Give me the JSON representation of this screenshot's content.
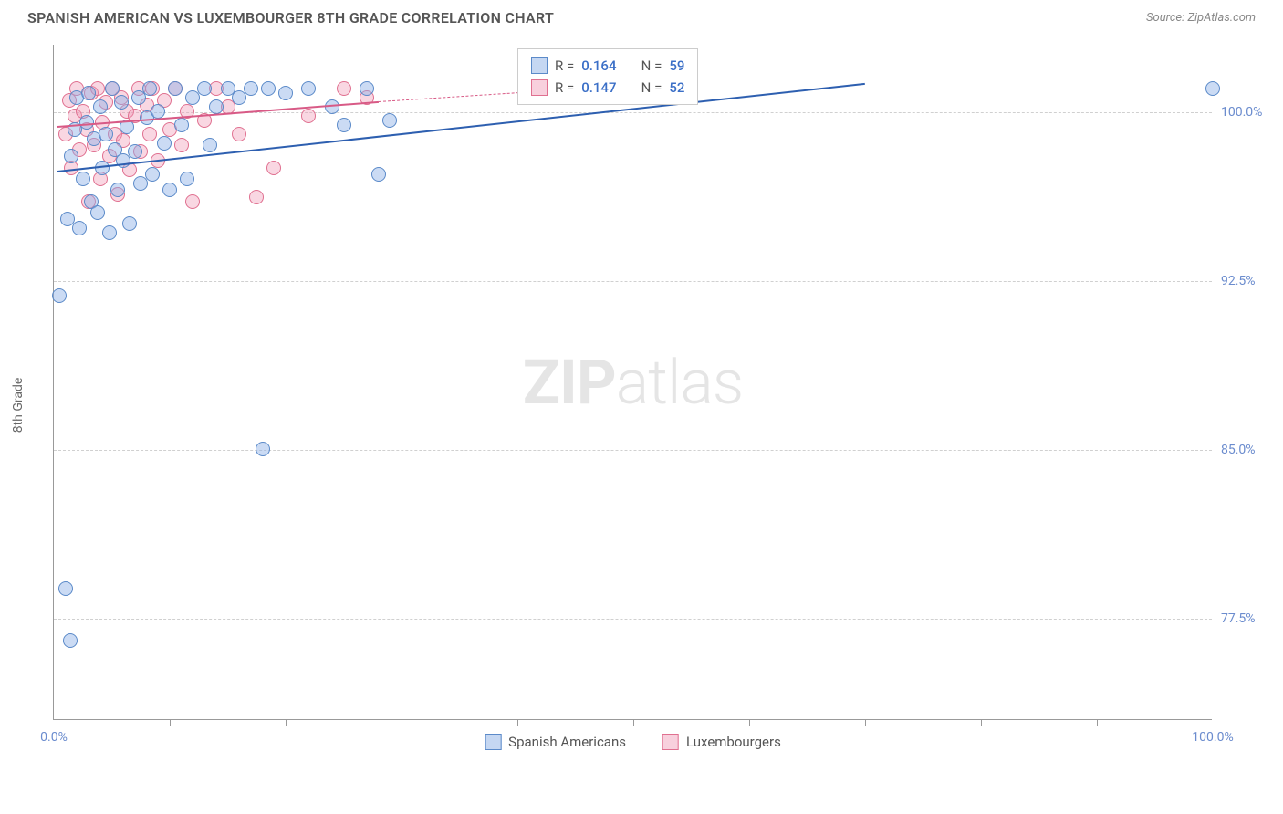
{
  "title": "SPANISH AMERICAN VS LUXEMBOURGER 8TH GRADE CORRELATION CHART",
  "source_label": "Source:",
  "source_name": "ZipAtlas.com",
  "ylabel": "8th Grade",
  "watermark": {
    "zip": "ZIP",
    "atlas": "atlas"
  },
  "chart": {
    "type": "scatter",
    "xlim": [
      0,
      100
    ],
    "ylim": [
      73,
      103
    ],
    "xticks": [
      0,
      100
    ],
    "xtick_labels": [
      "0.0%",
      "100.0%"
    ],
    "xtick_marks": [
      10,
      20,
      30,
      40,
      50,
      60,
      70,
      80,
      90
    ],
    "yticks": [
      77.5,
      85.0,
      92.5,
      100.0
    ],
    "ytick_labels": [
      "77.5%",
      "85.0%",
      "92.5%",
      "100.0%"
    ],
    "grid_color": "#d0d0d0",
    "background_color": "#ffffff",
    "marker_size": 16,
    "series": {
      "spanish": {
        "label": "Spanish Americans",
        "color_fill": "rgba(140,175,230,0.45)",
        "color_stroke": "#5b8ac9",
        "R": "0.164",
        "N": "59",
        "trendline": {
          "x1": 0.3,
          "y1": 97.4,
          "x2": 70,
          "y2": 101.3,
          "color": "#2d5fb0"
        },
        "points": [
          [
            0.5,
            91.8
          ],
          [
            1.0,
            78.8
          ],
          [
            1.4,
            76.5
          ],
          [
            1.2,
            95.2
          ],
          [
            1.5,
            98.0
          ],
          [
            1.8,
            99.2
          ],
          [
            2.0,
            100.6
          ],
          [
            2.2,
            94.8
          ],
          [
            2.5,
            97.0
          ],
          [
            2.8,
            99.5
          ],
          [
            3.0,
            100.8
          ],
          [
            3.2,
            96.0
          ],
          [
            3.5,
            98.8
          ],
          [
            3.8,
            95.5
          ],
          [
            4.0,
            100.2
          ],
          [
            4.2,
            97.5
          ],
          [
            4.5,
            99.0
          ],
          [
            4.8,
            94.6
          ],
          [
            5.0,
            101.0
          ],
          [
            5.3,
            98.3
          ],
          [
            5.5,
            96.5
          ],
          [
            5.8,
            100.4
          ],
          [
            6.0,
            97.8
          ],
          [
            6.3,
            99.3
          ],
          [
            6.5,
            95.0
          ],
          [
            7.0,
            98.2
          ],
          [
            7.3,
            100.6
          ],
          [
            7.5,
            96.8
          ],
          [
            8.0,
            99.7
          ],
          [
            8.3,
            101.0
          ],
          [
            8.5,
            97.2
          ],
          [
            9.0,
            100.0
          ],
          [
            9.5,
            98.6
          ],
          [
            10.0,
            96.5
          ],
          [
            10.5,
            101.0
          ],
          [
            11.0,
            99.4
          ],
          [
            11.5,
            97.0
          ],
          [
            12.0,
            100.6
          ],
          [
            13.0,
            101.0
          ],
          [
            13.5,
            98.5
          ],
          [
            14.0,
            100.2
          ],
          [
            15.0,
            101.0
          ],
          [
            16.0,
            100.6
          ],
          [
            17.0,
            101.0
          ],
          [
            18.0,
            85.0
          ],
          [
            18.5,
            101.0
          ],
          [
            20.0,
            100.8
          ],
          [
            22.0,
            101.0
          ],
          [
            24.0,
            100.2
          ],
          [
            25.0,
            99.4
          ],
          [
            27.0,
            101.0
          ],
          [
            28.0,
            97.2
          ],
          [
            29.0,
            99.6
          ],
          [
            100.0,
            101.0
          ]
        ]
      },
      "lux": {
        "label": "Luxembourgers",
        "color_fill": "rgba(240,150,180,0.38)",
        "color_stroke": "#e07090",
        "R": "0.147",
        "N": "52",
        "trendline": {
          "x1": 0.3,
          "y1": 99.4,
          "x2": 28,
          "y2": 100.5,
          "color": "#d85a86",
          "dash_ext_x2": 52,
          "dash_ext_y2": 101.3
        },
        "points": [
          [
            1.0,
            99.0
          ],
          [
            1.3,
            100.5
          ],
          [
            1.5,
            97.5
          ],
          [
            1.8,
            99.8
          ],
          [
            2.0,
            101.0
          ],
          [
            2.2,
            98.3
          ],
          [
            2.5,
            100.0
          ],
          [
            2.8,
            99.2
          ],
          [
            3.0,
            96.0
          ],
          [
            3.2,
            100.8
          ],
          [
            3.5,
            98.5
          ],
          [
            3.8,
            101.0
          ],
          [
            4.0,
            97.0
          ],
          [
            4.2,
            99.5
          ],
          [
            4.5,
            100.4
          ],
          [
            4.8,
            98.0
          ],
          [
            5.0,
            101.0
          ],
          [
            5.3,
            99.0
          ],
          [
            5.5,
            96.3
          ],
          [
            5.8,
            100.6
          ],
          [
            6.0,
            98.7
          ],
          [
            6.3,
            100.0
          ],
          [
            6.5,
            97.4
          ],
          [
            7.0,
            99.8
          ],
          [
            7.3,
            101.0
          ],
          [
            7.5,
            98.2
          ],
          [
            8.0,
            100.3
          ],
          [
            8.3,
            99.0
          ],
          [
            8.5,
            101.0
          ],
          [
            9.0,
            97.8
          ],
          [
            9.5,
            100.5
          ],
          [
            10.0,
            99.2
          ],
          [
            10.5,
            101.0
          ],
          [
            11.0,
            98.5
          ],
          [
            11.5,
            100.0
          ],
          [
            12.0,
            96.0
          ],
          [
            13.0,
            99.6
          ],
          [
            14.0,
            101.0
          ],
          [
            15.0,
            100.2
          ],
          [
            16.0,
            99.0
          ],
          [
            17.5,
            96.2
          ],
          [
            19.0,
            97.5
          ],
          [
            22.0,
            99.8
          ],
          [
            25.0,
            101.0
          ],
          [
            27.0,
            100.6
          ]
        ]
      }
    },
    "legend_box": {
      "R_label": "R =",
      "N_label": "N ="
    }
  }
}
